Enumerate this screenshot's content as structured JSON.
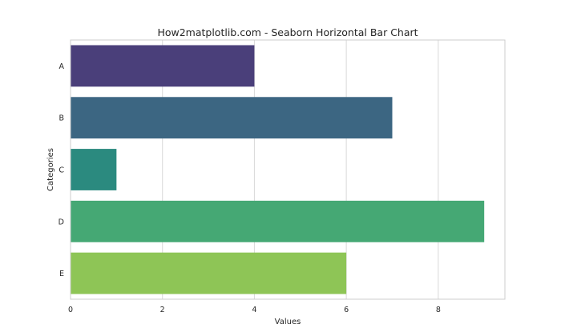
{
  "chart_data": {
    "type": "bar",
    "orientation": "horizontal",
    "title": "How2matplotlib.com - Seaborn Horizontal Bar Chart",
    "xlabel": "Values",
    "ylabel": "Categories",
    "categories": [
      "A",
      "B",
      "C",
      "D",
      "E"
    ],
    "values": [
      4,
      7,
      1,
      9,
      6
    ],
    "colors": [
      "#4a3f7a",
      "#3c6682",
      "#2b8a7f",
      "#45a874",
      "#8ec556"
    ],
    "xlim": [
      0,
      9.45
    ],
    "xticks": [
      "0",
      "2",
      "4",
      "6",
      "8"
    ],
    "grid": true
  }
}
